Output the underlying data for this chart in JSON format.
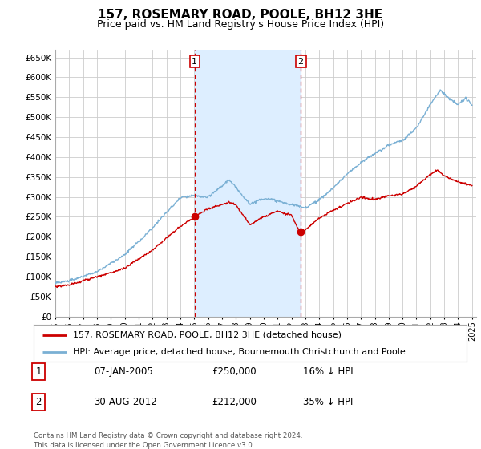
{
  "title": "157, ROSEMARY ROAD, POOLE, BH12 3HE",
  "subtitle": "Price paid vs. HM Land Registry's House Price Index (HPI)",
  "title_fontsize": 11,
  "subtitle_fontsize": 9,
  "ylabel_ticks": [
    0,
    50000,
    100000,
    150000,
    200000,
    250000,
    300000,
    350000,
    400000,
    450000,
    500000,
    550000,
    600000,
    650000
  ],
  "ylim": [
    0,
    670000
  ],
  "xlim_start": 1995.0,
  "xlim_end": 2025.3,
  "x_tick_years": [
    1995,
    1996,
    1997,
    1998,
    1999,
    2000,
    2001,
    2002,
    2003,
    2004,
    2005,
    2006,
    2007,
    2008,
    2009,
    2010,
    2011,
    2012,
    2013,
    2014,
    2015,
    2016,
    2017,
    2018,
    2019,
    2020,
    2021,
    2022,
    2023,
    2024,
    2025
  ],
  "red_line_color": "#cc0000",
  "blue_line_color": "#7ab0d4",
  "shade_color": "#ddeeff",
  "grid_color": "#cccccc",
  "bg_color": "#ffffff",
  "plot_bg_color": "#ffffff",
  "point1_x": 2005.03,
  "point1_y": 250000,
  "point2_x": 2012.67,
  "point2_y": 212000,
  "legend_red_label": "157, ROSEMARY ROAD, POOLE, BH12 3HE (detached house)",
  "legend_blue_label": "HPI: Average price, detached house, Bournemouth Christchurch and Poole",
  "table_row1": [
    "1",
    "07-JAN-2005",
    "£250,000",
    "16% ↓ HPI"
  ],
  "table_row2": [
    "2",
    "30-AUG-2012",
    "£212,000",
    "35% ↓ HPI"
  ],
  "footnote": "Contains HM Land Registry data © Crown copyright and database right 2024.\nThis data is licensed under the Open Government Licence v3.0."
}
